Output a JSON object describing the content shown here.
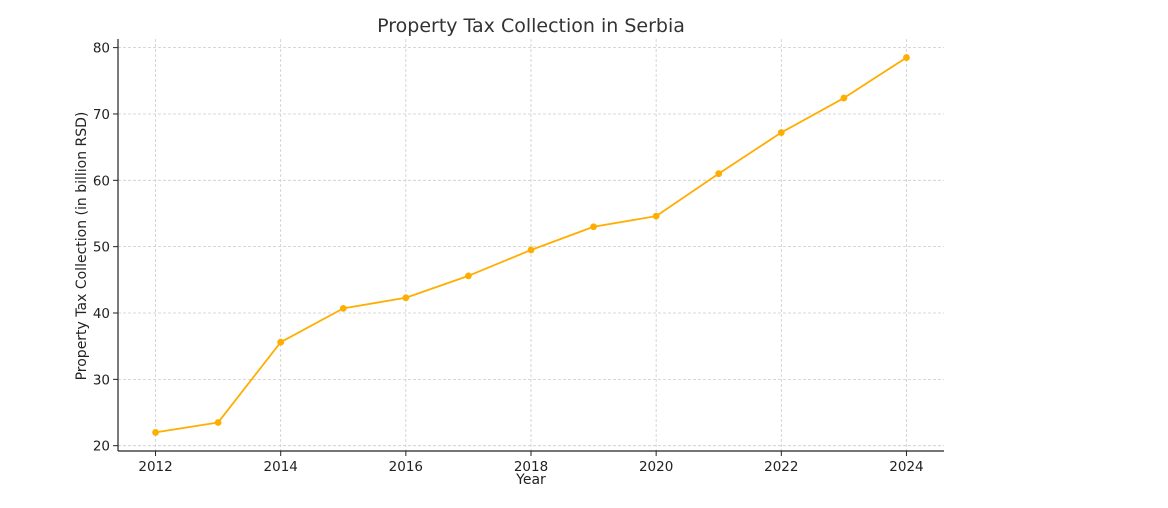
{
  "chart_data": {
    "type": "line",
    "title": "Property Tax Collection in Serbia",
    "xlabel": "Year",
    "ylabel": "Property Tax Collection (in billion RSD)",
    "x": [
      2012,
      2013,
      2014,
      2015,
      2016,
      2017,
      2018,
      2019,
      2020,
      2021,
      2022,
      2023,
      2024
    ],
    "series": [
      {
        "values": [
          22.0,
          23.5,
          35.6,
          40.7,
          42.3,
          45.6,
          49.5,
          53.0,
          54.6,
          61.0,
          67.2,
          72.4,
          78.5
        ],
        "color": "#FFAE00"
      }
    ],
    "xticks": [
      2012,
      2014,
      2016,
      2018,
      2020,
      2022,
      2024
    ],
    "yticks": [
      20,
      30,
      40,
      50,
      60,
      70,
      80
    ],
    "xlim": [
      2011.4,
      2024.6
    ],
    "ylim": [
      19.2,
      81.3
    ],
    "grid": true
  }
}
